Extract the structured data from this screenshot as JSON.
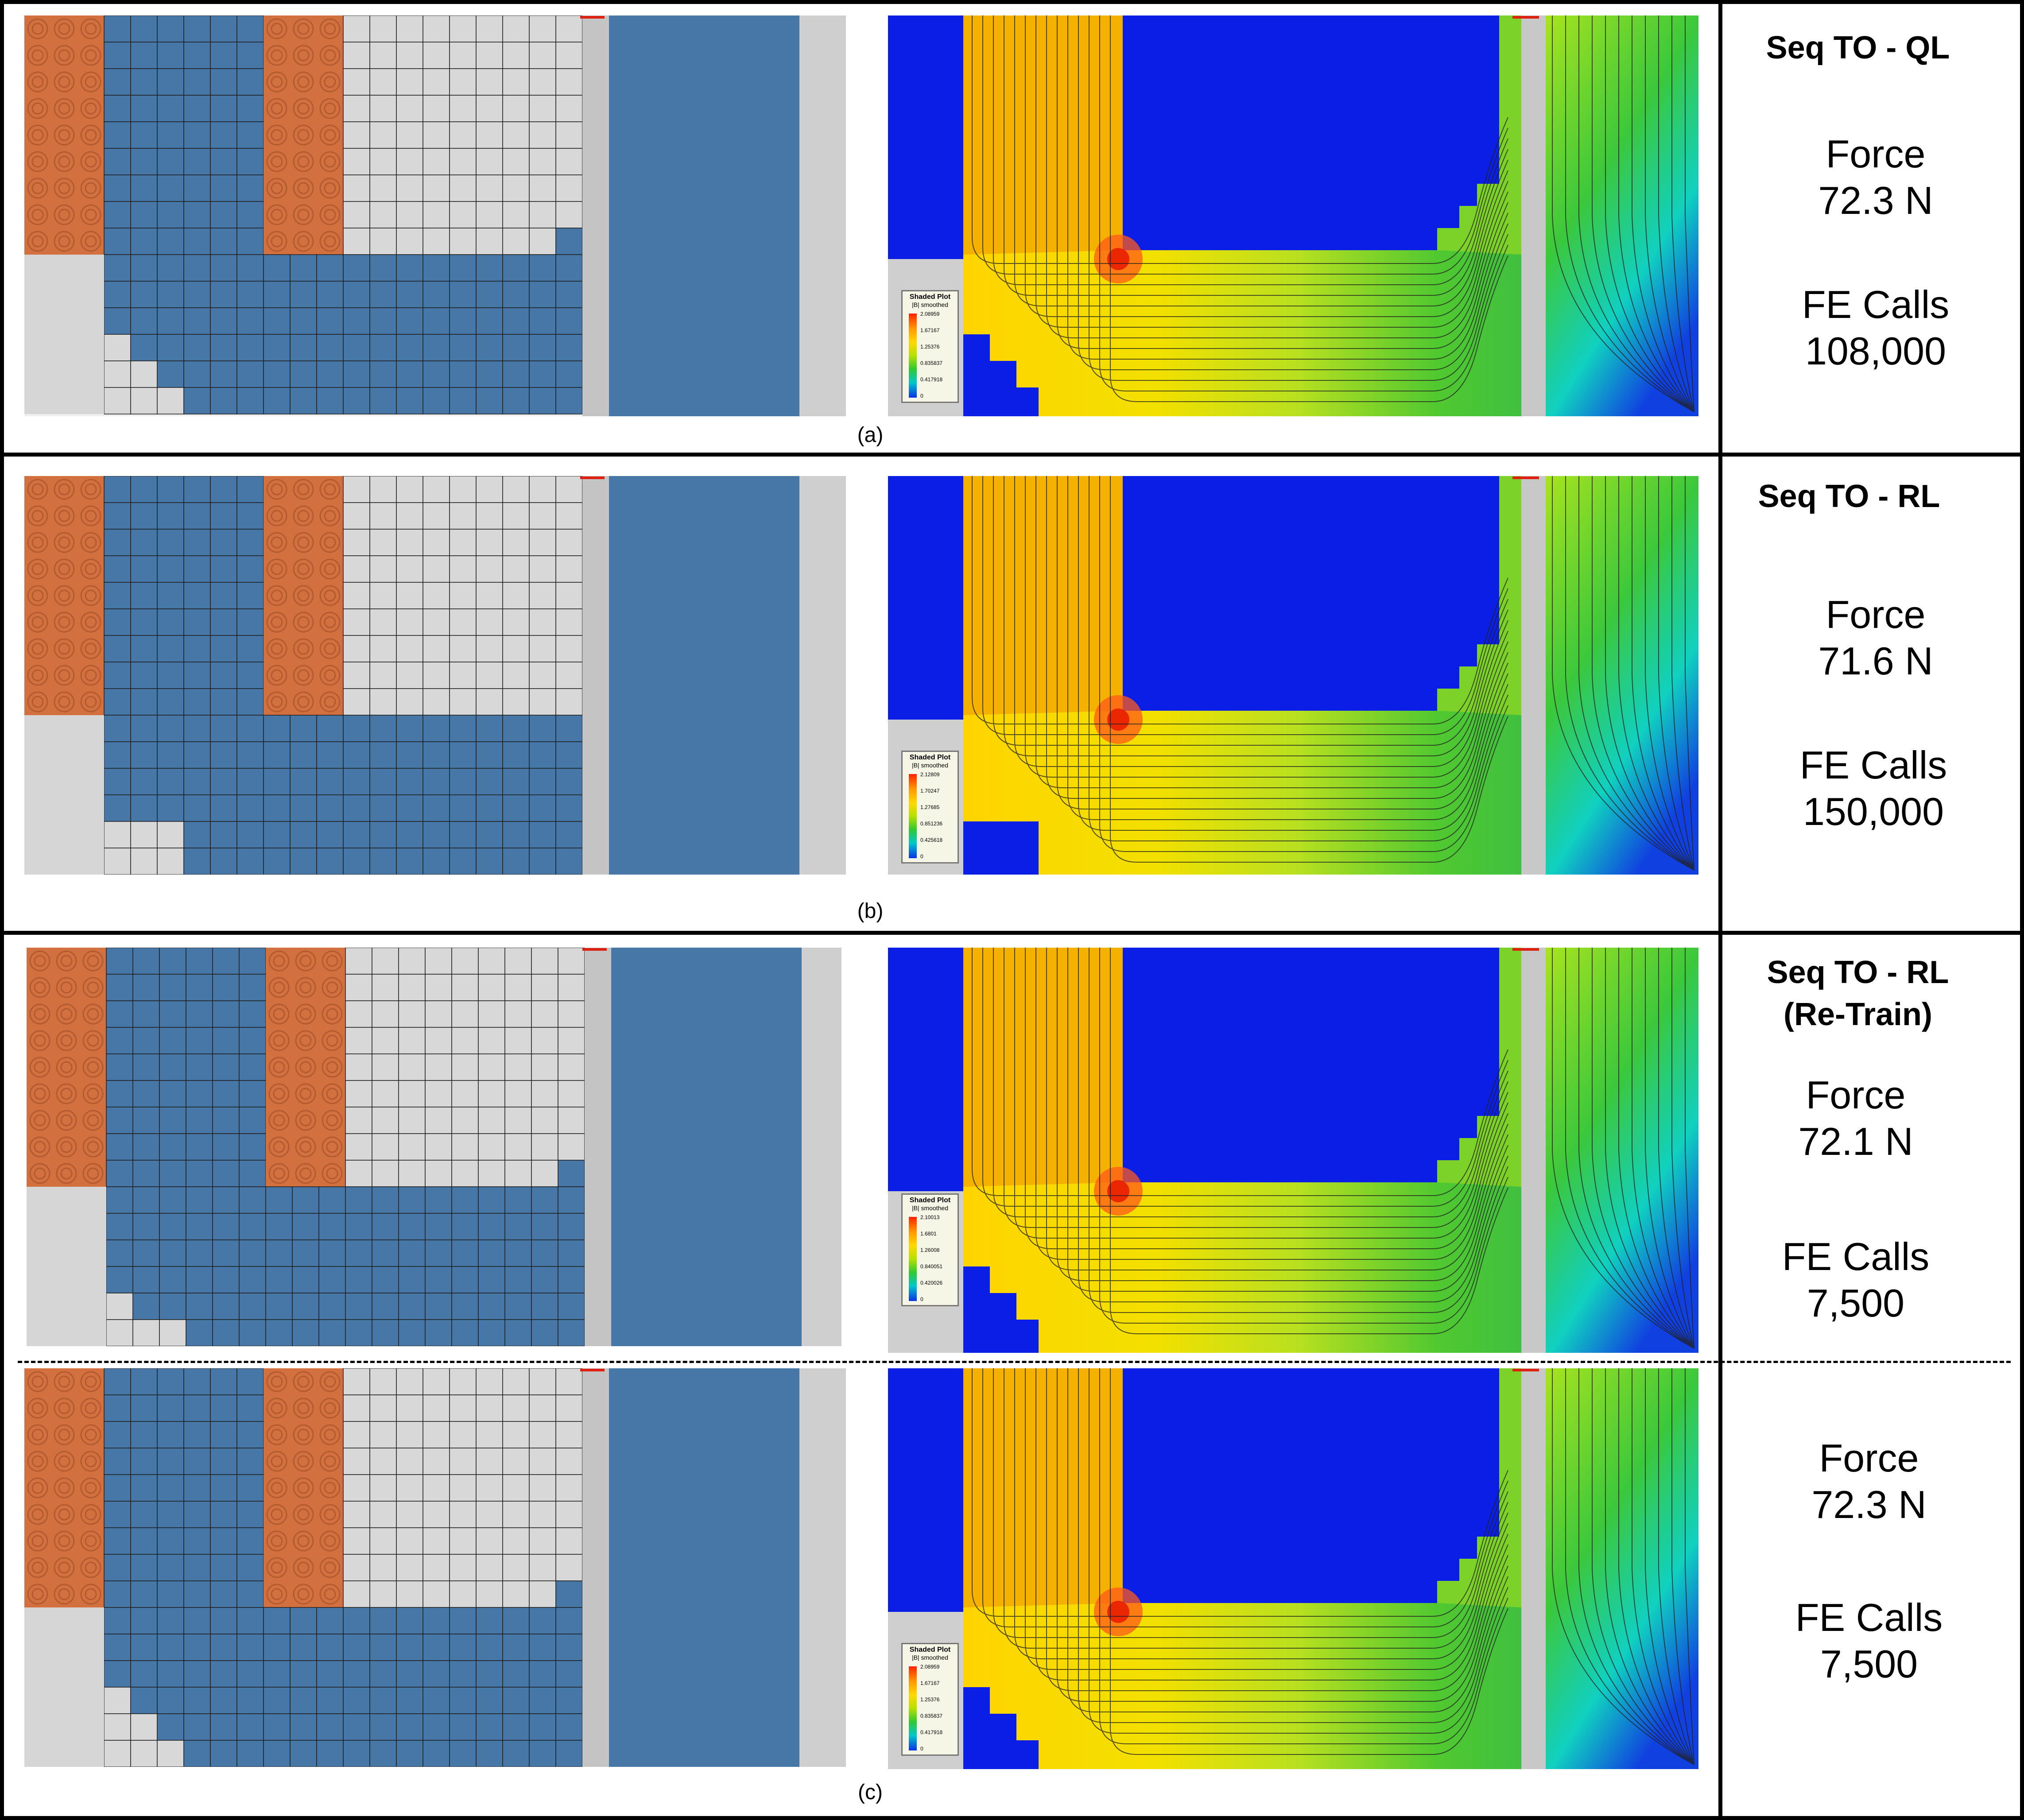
{
  "rows": [
    {
      "caption": "(a)",
      "title_line1": "Seq TO - QL",
      "title_line2": "",
      "force_label": "Force",
      "force_value": "72.3 N",
      "calls_label": "FE Calls",
      "calls_value": "108,000",
      "legend": {
        "title": "Shaded Plot",
        "sub": "|B| smoothed",
        "values": [
          "2.08959",
          "1.67167",
          "1.25376",
          "0.835837",
          "0.417918",
          "0"
        ]
      }
    },
    {
      "caption": "(b)",
      "title_line1": "Seq TO - RL",
      "title_line2": "",
      "force_label": "Force",
      "force_value": "71.6 N",
      "calls_label": "FE Calls",
      "calls_value": "150,000",
      "legend": {
        "title": "Shaded Plot",
        "sub": "|B| smoothed",
        "values": [
          "2.12809",
          "1.70247",
          "1.27685",
          "0.851236",
          "0.425618",
          "0"
        ]
      }
    },
    {
      "caption": "",
      "title_line1": "Seq TO - RL",
      "title_line2": "(Re-Train)",
      "force_label": "Force",
      "force_value": "72.1 N",
      "calls_label": "FE Calls",
      "calls_value": "7,500",
      "legend": {
        "title": "Shaded Plot",
        "sub": "|B| smoothed",
        "values": [
          "2.10013",
          "1.6801",
          "1.26008",
          "0.840051",
          "0.420026",
          "0"
        ]
      }
    },
    {
      "caption": "(c)",
      "title_line1": "",
      "title_line2": "",
      "force_label": "Force",
      "force_value": "72.3 N",
      "calls_label": "FE Calls",
      "calls_value": "7,500",
      "legend": {
        "title": "Shaded Plot",
        "sub": "|B| smoothed",
        "values": [
          "2.08959",
          "1.67167",
          "1.25376",
          "0.835837",
          "0.417918",
          "0"
        ]
      }
    }
  ],
  "colors": {
    "coil": "#d2703f",
    "iron": "#4677a6",
    "air": "#d8d8d8",
    "flux_high": "#f5b100",
    "flux_low": "#0a1ee6",
    "flux_mid": "#9ed81e"
  }
}
